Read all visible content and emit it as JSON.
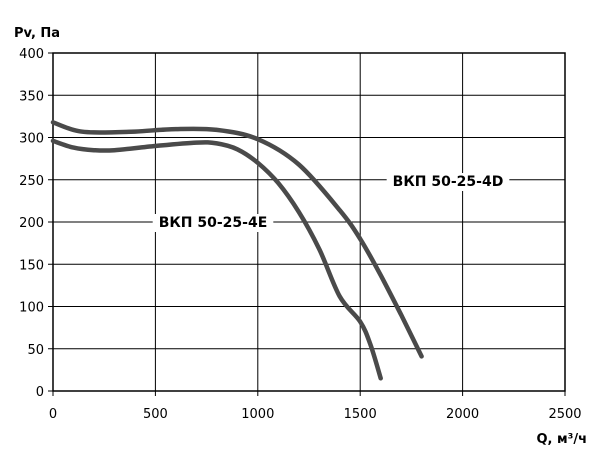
{
  "chart_data": {
    "type": "line",
    "title": "",
    "xlabel": "Q, м³/ч",
    "ylabel": "Pv, Па",
    "xlim": [
      0,
      2500
    ],
    "ylim": [
      0,
      400
    ],
    "xticks": [
      0,
      500,
      1000,
      1500,
      2000,
      2500
    ],
    "yticks": [
      0,
      50,
      100,
      150,
      200,
      250,
      300,
      350,
      400
    ],
    "grid": true,
    "series": [
      {
        "name": "ВКП 50-25-4D",
        "color": "#4a4a4a",
        "x": [
          0,
          100,
          200,
          400,
          600,
          800,
          1000,
          1200,
          1400,
          1500,
          1600,
          1700,
          1800
        ],
        "y": [
          318,
          309,
          306,
          307,
          310,
          309,
          298,
          268,
          214,
          180,
          137,
          90,
          41
        ]
      },
      {
        "name": "ВКП 50-25-4E",
        "color": "#4a4a4a",
        "x": [
          0,
          100,
          200,
          300,
          500,
          700,
          800,
          900,
          1000,
          1100,
          1200,
          1300,
          1400,
          1500,
          1550,
          1600
        ],
        "y": [
          296,
          288,
          285,
          285,
          290,
          294,
          293,
          286,
          270,
          246,
          212,
          168,
          112,
          82,
          55,
          15
        ]
      }
    ]
  }
}
